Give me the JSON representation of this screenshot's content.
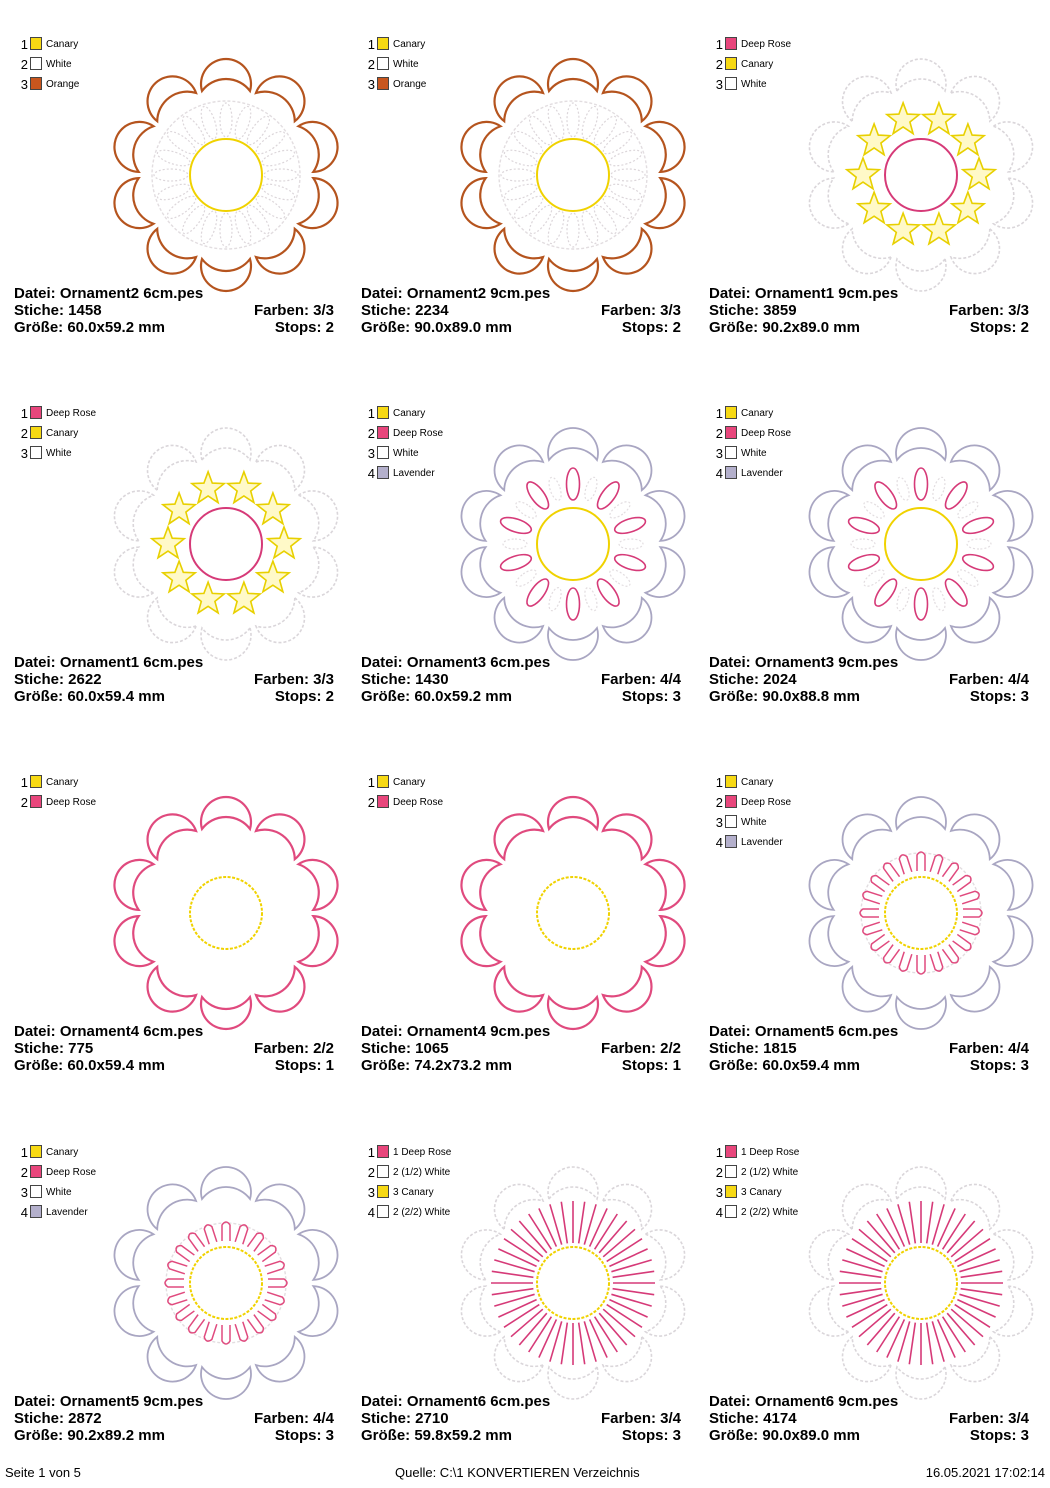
{
  "designs": [
    {
      "file": "Datei: Ornament2 6cm.pes",
      "stitches": "Stiche: 1458",
      "colors": "Farben: 3/3",
      "size": "Größe: 60.0x59.2 mm",
      "stops": "Stops: 2",
      "palette": [
        {
          "num": "1",
          "name": "Canary",
          "color": "#F7D914"
        },
        {
          "num": "2",
          "name": "White",
          "color": "#FFFFFF"
        },
        {
          "num": "3",
          "name": "Orange",
          "color": "#C8561E"
        }
      ]
    },
    {
      "file": "Datei: Ornament2 9cm.pes",
      "stitches": "Stiche: 2234",
      "colors": "Farben: 3/3",
      "size": "Größe: 90.0x89.0 mm",
      "stops": "Stops: 2",
      "palette": [
        {
          "num": "1",
          "name": "Canary",
          "color": "#F7D914"
        },
        {
          "num": "2",
          "name": "White",
          "color": "#FFFFFF"
        },
        {
          "num": "3",
          "name": "Orange",
          "color": "#C8561E"
        }
      ]
    },
    {
      "file": "Datei: Ornament1 9cm.pes",
      "stitches": "Stiche: 3859",
      "colors": "Farben: 3/3",
      "size": "Größe: 90.2x89.0 mm",
      "stops": "Stops: 2",
      "palette": [
        {
          "num": "1",
          "name": "Deep Rose",
          "color": "#E8467C"
        },
        {
          "num": "2",
          "name": "Canary",
          "color": "#F7D914"
        },
        {
          "num": "3",
          "name": "White",
          "color": "#FFFFFF"
        }
      ]
    },
    {
      "file": "Datei: Ornament1 6cm.pes",
      "stitches": "Stiche: 2622",
      "colors": "Farben: 3/3",
      "size": "Größe: 60.0x59.4 mm",
      "stops": "Stops: 2",
      "palette": [
        {
          "num": "1",
          "name": "Deep Rose",
          "color": "#E8467C"
        },
        {
          "num": "2",
          "name": "Canary",
          "color": "#F7D914"
        },
        {
          "num": "3",
          "name": "White",
          "color": "#FFFFFF"
        }
      ]
    },
    {
      "file": "Datei: Ornament3 6cm.pes",
      "stitches": "Stiche: 1430",
      "colors": "Farben: 4/4",
      "size": "Größe: 60.0x59.2 mm",
      "stops": "Stops: 3",
      "palette": [
        {
          "num": "1",
          "name": "Canary",
          "color": "#F7D914"
        },
        {
          "num": "2",
          "name": "Deep Rose",
          "color": "#E8467C"
        },
        {
          "num": "3",
          "name": "White",
          "color": "#FFFFFF"
        },
        {
          "num": "4",
          "name": "Lavender",
          "color": "#B4B0CC"
        }
      ]
    },
    {
      "file": "Datei: Ornament3 9cm.pes",
      "stitches": "Stiche: 2024",
      "colors": "Farben: 4/4",
      "size": "Größe: 90.0x88.8 mm",
      "stops": "Stops: 3",
      "palette": [
        {
          "num": "1",
          "name": "Canary",
          "color": "#F7D914"
        },
        {
          "num": "2",
          "name": "Deep Rose",
          "color": "#E8467C"
        },
        {
          "num": "3",
          "name": "White",
          "color": "#FFFFFF"
        },
        {
          "num": "4",
          "name": "Lavender",
          "color": "#B4B0CC"
        }
      ]
    },
    {
      "file": "Datei: Ornament4 6cm.pes",
      "stitches": "Stiche: 775",
      "colors": "Farben: 2/2",
      "size": "Größe: 60.0x59.4 mm",
      "stops": "Stops: 1",
      "palette": [
        {
          "num": "1",
          "name": "Canary",
          "color": "#F7D914"
        },
        {
          "num": "2",
          "name": "Deep Rose",
          "color": "#E8467C"
        }
      ]
    },
    {
      "file": "Datei: Ornament4 9cm.pes",
      "stitches": "Stiche: 1065",
      "colors": "Farben: 2/2",
      "size": "Größe: 74.2x73.2 mm",
      "stops": "Stops: 1",
      "palette": [
        {
          "num": "1",
          "name": "Canary",
          "color": "#F7D914"
        },
        {
          "num": "2",
          "name": "Deep Rose",
          "color": "#E8467C"
        }
      ]
    },
    {
      "file": "Datei: Ornament5 6cm.pes",
      "stitches": "Stiche: 1815",
      "colors": "Farben: 4/4",
      "size": "Größe: 60.0x59.4 mm",
      "stops": "Stops: 3",
      "palette": [
        {
          "num": "1",
          "name": "Canary",
          "color": "#F7D914"
        },
        {
          "num": "2",
          "name": "Deep Rose",
          "color": "#E8467C"
        },
        {
          "num": "3",
          "name": "White",
          "color": "#FFFFFF"
        },
        {
          "num": "4",
          "name": "Lavender",
          "color": "#B4B0CC"
        }
      ]
    },
    {
      "file": "Datei: Ornament5 9cm.pes",
      "stitches": "Stiche: 2872",
      "colors": "Farben: 4/4",
      "size": "Größe: 90.2x89.2 mm",
      "stops": "Stops: 3",
      "palette": [
        {
          "num": "1",
          "name": "Canary",
          "color": "#F7D914"
        },
        {
          "num": "2",
          "name": "Deep Rose",
          "color": "#E8467C"
        },
        {
          "num": "3",
          "name": "White",
          "color": "#FFFFFF"
        },
        {
          "num": "4",
          "name": "Lavender",
          "color": "#B4B0CC"
        }
      ]
    },
    {
      "file": "Datei: Ornament6 6cm.pes",
      "stitches": "Stiche: 2710",
      "colors": "Farben: 3/4",
      "size": "Größe: 59.8x59.2 mm",
      "stops": "Stops: 3",
      "palette": [
        {
          "num": "1",
          "name": "1 Deep Rose",
          "color": "#E8467C"
        },
        {
          "num": "2",
          "name": "2 (1/2) White",
          "color": "#FFFFFF"
        },
        {
          "num": "3",
          "name": "3 Canary",
          "color": "#F7D914"
        },
        {
          "num": "4",
          "name": "2 (2/2) White",
          "color": "#FFFFFF"
        }
      ]
    },
    {
      "file": "Datei: Ornament6 9cm.pes",
      "stitches": "Stiche: 4174",
      "colors": "Farben: 3/4",
      "size": "Größe: 90.0x89.0 mm",
      "stops": "Stops: 3",
      "palette": [
        {
          "num": "1",
          "name": "1 Deep Rose",
          "color": "#E8467C"
        },
        {
          "num": "2",
          "name": "2 (1/2) White",
          "color": "#FFFFFF"
        },
        {
          "num": "3",
          "name": "3 Canary",
          "color": "#F7D914"
        },
        {
          "num": "4",
          "name": "2 (2/2) White",
          "color": "#FFFFFF"
        }
      ]
    }
  ],
  "footer": {
    "page": "Seite 1 von 5",
    "source": "Quelle: C:\\1 KONVERTIEREN Verzeichnis",
    "date": "16.05.2021 17:02:14"
  }
}
